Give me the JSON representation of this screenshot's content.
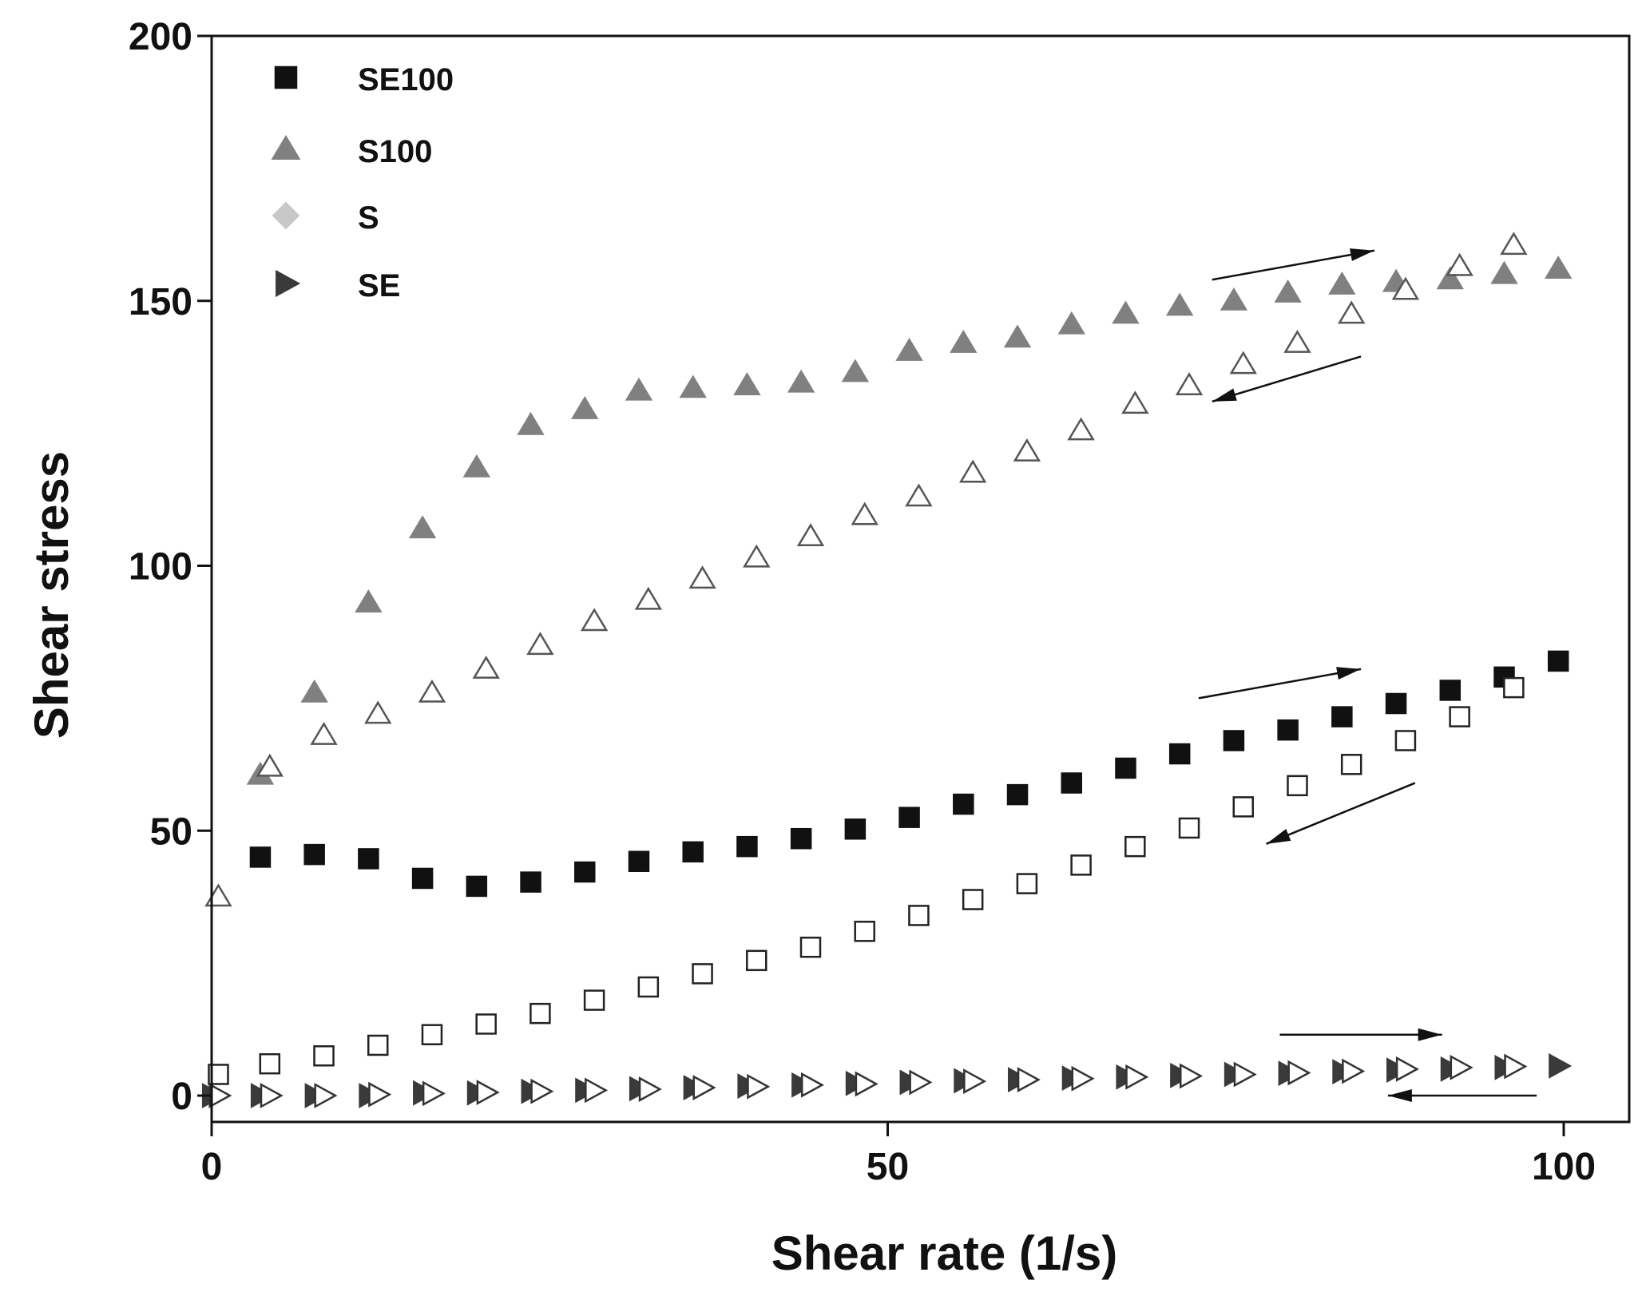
{
  "chart_data": {
    "type": "scatter",
    "title": "",
    "xlabel": "Shear rate (1/s)",
    "ylabel": "Shear stress",
    "xlim": [
      0,
      100
    ],
    "ylim": [
      0,
      200
    ],
    "xticks": [
      0,
      50,
      100
    ],
    "yticks": [
      0,
      50,
      100,
      150,
      200
    ],
    "xtick_labels": [
      "0",
      "50",
      "100"
    ],
    "ytick_labels": [
      "0",
      "50",
      "100",
      "150",
      "200"
    ],
    "grid": false,
    "legend_position": "top-left",
    "legend": [
      {
        "label": "SE100",
        "marker": "square",
        "color": "#111111"
      },
      {
        "label": "S100",
        "marker": "triangle",
        "color": "#808080"
      },
      {
        "label": "S",
        "marker": "diamond",
        "color": "#c8c8c8"
      },
      {
        "label": "SE",
        "marker": "triangle-right",
        "color": "#3a3a3a"
      }
    ],
    "series": [
      {
        "name": "SE100 up",
        "marker": "square",
        "fill": "#111111",
        "stroke": "#111111",
        "x": [
          3.6,
          7.6,
          11.6,
          15.6,
          19.6,
          23.6,
          27.6,
          31.6,
          35.6,
          39.6,
          43.6,
          47.6,
          51.6,
          55.6,
          59.6,
          63.6,
          67.6,
          71.6,
          75.6,
          79.6,
          83.6,
          87.6,
          91.6,
          95.6,
          99.6
        ],
        "y": [
          45,
          45.5,
          44.7,
          41,
          39.5,
          40.3,
          42.2,
          44.2,
          46,
          47,
          48.5,
          50.3,
          52.5,
          55,
          56.8,
          59,
          61.8,
          64.5,
          67,
          69,
          71.5,
          74,
          76.5,
          79,
          82
        ]
      },
      {
        "name": "SE100 down",
        "marker": "square",
        "fill": "#ffffff",
        "stroke": "#222222",
        "x": [
          0.5,
          4.3,
          8.3,
          12.3,
          16.3,
          20.3,
          24.3,
          28.3,
          32.3,
          36.3,
          40.3,
          44.3,
          48.3,
          52.3,
          56.3,
          60.3,
          64.3,
          68.3,
          72.3,
          76.3,
          80.3,
          84.3,
          88.3,
          92.3,
          96.3
        ],
        "y": [
          4,
          6,
          7.5,
          9.5,
          11.5,
          13.5,
          15.5,
          18,
          20.5,
          23,
          25.5,
          28,
          31,
          34,
          37,
          40,
          43.5,
          47,
          50.5,
          54.5,
          58.5,
          62.5,
          67,
          71.5,
          77
        ]
      },
      {
        "name": "S100 up",
        "marker": "triangle",
        "fill": "#808080",
        "stroke": "#808080",
        "x": [
          3.6,
          7.6,
          11.6,
          15.6,
          19.6,
          23.6,
          27.6,
          31.6,
          35.6,
          39.6,
          43.6,
          47.6,
          51.6,
          55.6,
          59.6,
          63.6,
          67.6,
          71.6,
          75.6,
          79.6,
          83.6,
          87.6,
          91.6,
          95.6,
          99.6
        ],
        "y": [
          60.5,
          76,
          93,
          107,
          118.5,
          126.5,
          129.5,
          133,
          133.5,
          134,
          134.5,
          136.5,
          140.5,
          142,
          143,
          145.5,
          147.5,
          149,
          150,
          151.5,
          153,
          153.5,
          154,
          155,
          156
        ]
      },
      {
        "name": "S100 down",
        "marker": "triangle",
        "fill": "#ffffff",
        "stroke": "#555555",
        "x": [
          0.5,
          4.3,
          8.3,
          12.3,
          16.3,
          20.3,
          24.3,
          28.3,
          32.3,
          36.3,
          40.3,
          44.3,
          48.3,
          52.3,
          56.3,
          60.3,
          64.3,
          68.3,
          72.3,
          76.3,
          80.3,
          84.3,
          88.3,
          92.3,
          96.3
        ],
        "y": [
          37.5,
          62,
          68,
          72,
          76,
          80.5,
          85,
          89.5,
          93.5,
          97.5,
          101.5,
          105.5,
          109.5,
          113,
          117.5,
          121.5,
          125.5,
          130.5,
          134,
          138,
          142,
          147.5,
          152,
          156.5,
          160.5
        ]
      },
      {
        "name": "SE up",
        "marker": "triangle-right",
        "fill": "#3a3a3a",
        "stroke": "#3a3a3a",
        "x": [
          0,
          3.6,
          7.6,
          11.6,
          15.6,
          19.6,
          23.6,
          27.6,
          31.6,
          35.6,
          39.6,
          43.6,
          47.6,
          51.6,
          55.6,
          59.6,
          63.6,
          67.6,
          71.6,
          75.6,
          79.6,
          83.6,
          87.6,
          91.6,
          95.6,
          99.6
        ],
        "y": [
          0,
          0,
          0,
          0,
          0.5,
          0.5,
          0.8,
          1,
          1.3,
          1.5,
          1.8,
          2,
          2.3,
          2.5,
          2.8,
          3,
          3.3,
          3.5,
          3.8,
          4,
          4.2,
          4.5,
          4.8,
          5,
          5.3,
          5.6
        ]
      },
      {
        "name": "SE down",
        "marker": "triangle-right",
        "fill": "#ffffff",
        "stroke": "#333333",
        "x": [
          0.5,
          4.3,
          8.3,
          12.3,
          16.3,
          20.3,
          24.3,
          28.3,
          32.3,
          36.3,
          40.3,
          44.3,
          48.3,
          52.3,
          56.3,
          60.3,
          64.3,
          68.3,
          72.3,
          76.3,
          80.3,
          84.3,
          88.3,
          92.3,
          96.3
        ],
        "y": [
          0,
          0,
          0,
          0.2,
          0.4,
          0.6,
          0.8,
          1,
          1.2,
          1.5,
          1.7,
          2,
          2.2,
          2.5,
          2.7,
          3,
          3.2,
          3.5,
          3.7,
          4,
          4.3,
          4.6,
          5,
          5.3,
          5.5
        ]
      }
    ],
    "annotations": [
      {
        "type": "arrow",
        "direction": "right",
        "from": [
          74,
          154
        ],
        "to": [
          86,
          159.5
        ]
      },
      {
        "type": "arrow",
        "direction": "left",
        "from": [
          85,
          139.5
        ],
        "to": [
          74,
          131
        ]
      },
      {
        "type": "arrow",
        "direction": "right",
        "from": [
          73,
          75
        ],
        "to": [
          85,
          80.5
        ]
      },
      {
        "type": "arrow",
        "direction": "left",
        "from": [
          89,
          59
        ],
        "to": [
          78,
          47.5
        ]
      },
      {
        "type": "arrow",
        "direction": "right",
        "from": [
          79,
          11.5
        ],
        "to": [
          91,
          11.5
        ]
      },
      {
        "type": "arrow",
        "direction": "left",
        "from": [
          98,
          0
        ],
        "to": [
          87,
          0
        ]
      }
    ]
  }
}
